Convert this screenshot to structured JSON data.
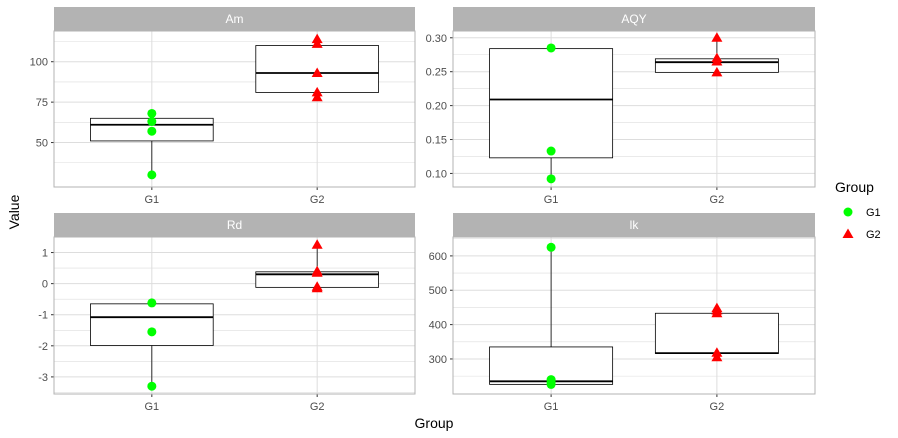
{
  "chart_data": {
    "type": "box",
    "xlabel": "Group",
    "ylabel": "Value",
    "categories": [
      "G1",
      "G2"
    ],
    "legend": {
      "title": "Group",
      "placement": "right",
      "entries": [
        {
          "label": "G1",
          "color": "#00ff00",
          "shape": "circle"
        },
        {
          "label": "G2",
          "color": "#ff0000",
          "shape": "triangle"
        }
      ]
    },
    "grid": true,
    "colors": {
      "strip": "#b3b3b3",
      "grid": "#dddddd",
      "frame": "#b3b3b3",
      "box": "#000000"
    },
    "panels": [
      {
        "title": "Am",
        "ylim": [
          22.5,
          119
        ],
        "yticks": [
          50,
          75,
          100
        ],
        "yticklabels": [
          "50",
          "75",
          "100"
        ],
        "boxes": [
          {
            "group": "G1",
            "whisker_low": 30,
            "q1": 51,
            "median": 61,
            "q3": 65,
            "whisker_high": 68
          },
          {
            "group": "G2",
            "whisker_low": 78,
            "q1": 81,
            "median": 93,
            "q3": 110,
            "whisker_high": 115
          }
        ],
        "points": [
          {
            "group": "G1",
            "values": [
              30,
              57,
              63,
              68
            ]
          },
          {
            "group": "G2",
            "values": [
              78,
              81,
              93,
              111,
              114
            ]
          }
        ]
      },
      {
        "title": "AQY",
        "ylim": [
          0.08,
          0.31
        ],
        "yticks": [
          0.1,
          0.15,
          0.2,
          0.25,
          0.3
        ],
        "yticklabels": [
          "0.10",
          "0.15",
          "0.20",
          "0.25",
          "0.30"
        ],
        "boxes": [
          {
            "group": "G1",
            "whisker_low": 0.092,
            "q1": 0.123,
            "median": 0.209,
            "q3": 0.284,
            "whisker_high": 0.285
          },
          {
            "group": "G2",
            "whisker_low": 0.249,
            "q1": 0.249,
            "median": 0.264,
            "q3": 0.269,
            "whisker_high": 0.3
          }
        ],
        "points": [
          {
            "group": "G1",
            "values": [
              0.092,
              0.133,
              0.285
            ]
          },
          {
            "group": "G2",
            "values": [
              0.249,
              0.265,
              0.27,
              0.3
            ]
          }
        ]
      },
      {
        "title": "Rd",
        "ylim": [
          -3.55,
          1.5
        ],
        "yticks": [
          -3,
          -2,
          -1,
          0,
          1
        ],
        "yticklabels": [
          "-3",
          "-2",
          "-1",
          "0",
          "1"
        ],
        "boxes": [
          {
            "group": "G1",
            "whisker_low": -3.3,
            "q1": -1.99,
            "median": -1.08,
            "q3": -0.65,
            "whisker_high": -0.6
          },
          {
            "group": "G2",
            "whisker_low": -0.15,
            "q1": -0.12,
            "median": 0.3,
            "q3": 0.38,
            "whisker_high": 1.25
          }
        ],
        "points": [
          {
            "group": "G1",
            "values": [
              -3.3,
              -1.55,
              -0.62
            ]
          },
          {
            "group": "G2",
            "values": [
              -0.15,
              -0.1,
              0.35,
              0.4,
              1.25
            ]
          }
        ]
      },
      {
        "title": "lk",
        "ylim": [
          198,
          655
        ],
        "yticks": [
          300,
          400,
          500,
          600
        ],
        "yticklabels": [
          "300",
          "400",
          "500",
          "600"
        ],
        "boxes": [
          {
            "group": "G1",
            "whisker_low": 226,
            "q1": 226,
            "median": 235,
            "q3": 335,
            "whisker_high": 625
          },
          {
            "group": "G2",
            "whisker_low": 305,
            "q1": 316,
            "median": 317,
            "q3": 433,
            "whisker_high": 448
          }
        ],
        "points": [
          {
            "group": "G1",
            "values": [
              226,
              232,
              240,
              625
            ]
          },
          {
            "group": "G2",
            "values": [
              305,
              318,
              433,
              441,
              448
            ]
          }
        ]
      }
    ]
  }
}
